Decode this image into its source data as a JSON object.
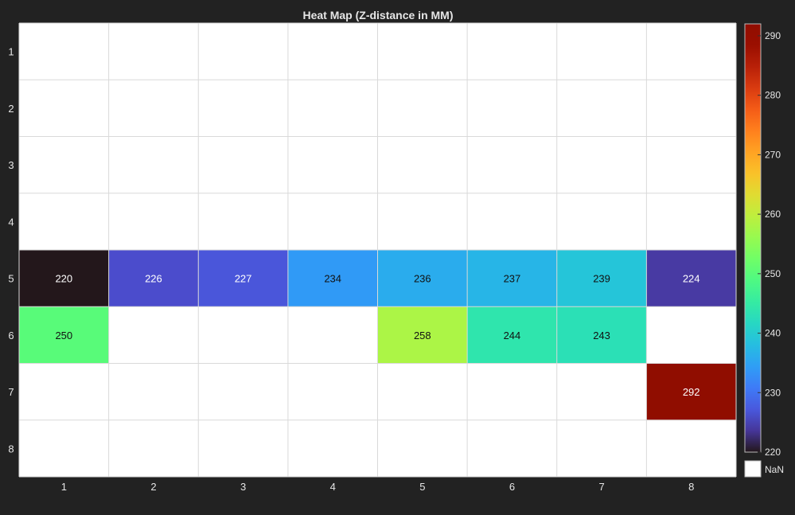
{
  "chart_data": {
    "type": "heatmap",
    "title": "Heat Map (Z-distance in MM)",
    "x_categories": [
      "1",
      "2",
      "3",
      "4",
      "5",
      "6",
      "7",
      "8"
    ],
    "y_categories": [
      "1",
      "2",
      "3",
      "4",
      "5",
      "6",
      "7",
      "8"
    ],
    "cells": [
      {
        "row": 5,
        "col": 1,
        "value": 220
      },
      {
        "row": 5,
        "col": 2,
        "value": 226
      },
      {
        "row": 5,
        "col": 3,
        "value": 227
      },
      {
        "row": 5,
        "col": 4,
        "value": 234
      },
      {
        "row": 5,
        "col": 5,
        "value": 236
      },
      {
        "row": 5,
        "col": 6,
        "value": 237
      },
      {
        "row": 5,
        "col": 7,
        "value": 239
      },
      {
        "row": 5,
        "col": 8,
        "value": 224
      },
      {
        "row": 6,
        "col": 1,
        "value": 250
      },
      {
        "row": 6,
        "col": 5,
        "value": 258
      },
      {
        "row": 6,
        "col": 6,
        "value": 244
      },
      {
        "row": 6,
        "col": 7,
        "value": 243
      },
      {
        "row": 7,
        "col": 8,
        "value": 292
      }
    ],
    "missing_value_label": "NaN",
    "colorbar": {
      "min": 220,
      "max": 292,
      "ticks": [
        220,
        230,
        240,
        250,
        260,
        270,
        280,
        290
      ],
      "colormap": "turbo"
    },
    "colors": {
      "background": "#222222",
      "empty_cell": "#ffffff",
      "grid": "#d9d9d9",
      "text": "#e6e6e6"
    }
  }
}
